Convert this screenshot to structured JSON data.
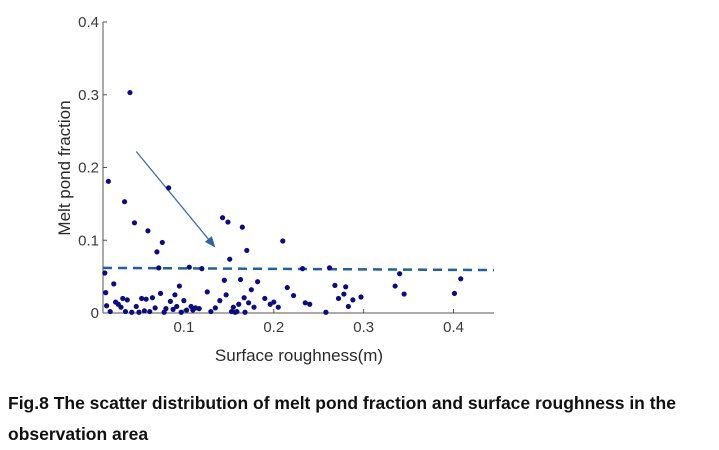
{
  "caption": "Fig.8 The scatter distribution of melt pond fraction and surface roughness in the observation area",
  "chart_data": {
    "type": "scatter",
    "xlabel": "Surface roughness(m)",
    "ylabel": "Melt pond fraction",
    "xlim": [
      0.01,
      0.445
    ],
    "ylim": [
      0,
      0.4
    ],
    "xticks": [
      0.1,
      0.2,
      0.3,
      0.4
    ],
    "xtick_labels": [
      "0.1",
      "0.2",
      "0.3",
      "0.4"
    ],
    "yticks": [
      0,
      0.1,
      0.2,
      0.3,
      0.4
    ],
    "ytick_labels": [
      "0",
      "0.1",
      "0.2",
      "0.3",
      "0.4"
    ],
    "grid": false,
    "legend": "none",
    "colors": {
      "points": "#0b0b8a",
      "trend_line": "#1f5fa8",
      "arrow": "#3a6fb0",
      "axis": "#555555"
    },
    "trend_line": {
      "style": "dashed",
      "x": [
        0.01,
        0.445
      ],
      "y": [
        0.062,
        0.059
      ]
    },
    "arrow": {
      "from": [
        0.047,
        0.222
      ],
      "to": [
        0.135,
        0.09
      ]
    },
    "points": [
      {
        "x": 0.012,
        "y": 0.055
      },
      {
        "x": 0.013,
        "y": 0.028
      },
      {
        "x": 0.014,
        "y": 0.01
      },
      {
        "x": 0.016,
        "y": 0.181
      },
      {
        "x": 0.018,
        "y": 0.002
      },
      {
        "x": 0.022,
        "y": 0.04
      },
      {
        "x": 0.024,
        "y": 0.015
      },
      {
        "x": 0.027,
        "y": 0.012
      },
      {
        "x": 0.03,
        "y": 0.008
      },
      {
        "x": 0.032,
        "y": 0.02
      },
      {
        "x": 0.034,
        "y": 0.153
      },
      {
        "x": 0.035,
        "y": 0.002
      },
      {
        "x": 0.037,
        "y": 0.018
      },
      {
        "x": 0.04,
        "y": 0.303
      },
      {
        "x": 0.042,
        "y": 0.001
      },
      {
        "x": 0.045,
        "y": 0.124
      },
      {
        "x": 0.047,
        "y": 0.009
      },
      {
        "x": 0.05,
        "y": 0.001
      },
      {
        "x": 0.053,
        "y": 0.02
      },
      {
        "x": 0.056,
        "y": 0.003
      },
      {
        "x": 0.058,
        "y": 0.019
      },
      {
        "x": 0.06,
        "y": 0.113
      },
      {
        "x": 0.062,
        "y": 0.002
      },
      {
        "x": 0.065,
        "y": 0.021
      },
      {
        "x": 0.068,
        "y": 0.007
      },
      {
        "x": 0.07,
        "y": 0.084
      },
      {
        "x": 0.072,
        "y": 0.062
      },
      {
        "x": 0.074,
        "y": 0.027
      },
      {
        "x": 0.076,
        "y": 0.097
      },
      {
        "x": 0.078,
        "y": 0.001
      },
      {
        "x": 0.08,
        "y": 0.006
      },
      {
        "x": 0.083,
        "y": 0.172
      },
      {
        "x": 0.085,
        "y": 0.016
      },
      {
        "x": 0.088,
        "y": 0.005
      },
      {
        "x": 0.09,
        "y": 0.025
      },
      {
        "x": 0.092,
        "y": 0.009
      },
      {
        "x": 0.095,
        "y": 0.037
      },
      {
        "x": 0.097,
        "y": 0.001
      },
      {
        "x": 0.1,
        "y": 0.017
      },
      {
        "x": 0.103,
        "y": 0.004
      },
      {
        "x": 0.106,
        "y": 0.063
      },
      {
        "x": 0.108,
        "y": 0.009
      },
      {
        "x": 0.11,
        "y": 0.004
      },
      {
        "x": 0.113,
        "y": 0.007
      },
      {
        "x": 0.117,
        "y": 0.006
      },
      {
        "x": 0.12,
        "y": 0.061
      },
      {
        "x": 0.126,
        "y": 0.029
      },
      {
        "x": 0.13,
        "y": 0.002
      },
      {
        "x": 0.135,
        "y": 0.007
      },
      {
        "x": 0.14,
        "y": 0.017
      },
      {
        "x": 0.143,
        "y": 0.131
      },
      {
        "x": 0.145,
        "y": 0.045
      },
      {
        "x": 0.147,
        "y": 0.025
      },
      {
        "x": 0.149,
        "y": 0.125
      },
      {
        "x": 0.151,
        "y": 0.074
      },
      {
        "x": 0.153,
        "y": 0.002
      },
      {
        "x": 0.155,
        "y": 0.008
      },
      {
        "x": 0.157,
        "y": 0.001
      },
      {
        "x": 0.159,
        "y": 0.002
      },
      {
        "x": 0.161,
        "y": 0.012
      },
      {
        "x": 0.163,
        "y": 0.046
      },
      {
        "x": 0.165,
        "y": 0.118
      },
      {
        "x": 0.167,
        "y": 0.021
      },
      {
        "x": 0.168,
        "y": 0.001
      },
      {
        "x": 0.17,
        "y": 0.086
      },
      {
        "x": 0.172,
        "y": 0.014
      },
      {
        "x": 0.175,
        "y": 0.032
      },
      {
        "x": 0.178,
        "y": 0.008
      },
      {
        "x": 0.182,
        "y": 0.043
      },
      {
        "x": 0.19,
        "y": 0.02
      },
      {
        "x": 0.196,
        "y": 0.012
      },
      {
        "x": 0.2,
        "y": 0.015
      },
      {
        "x": 0.205,
        "y": 0.008
      },
      {
        "x": 0.21,
        "y": 0.099
      },
      {
        "x": 0.215,
        "y": 0.035
      },
      {
        "x": 0.222,
        "y": 0.024
      },
      {
        "x": 0.232,
        "y": 0.061
      },
      {
        "x": 0.235,
        "y": 0.014
      },
      {
        "x": 0.24,
        "y": 0.012
      },
      {
        "x": 0.258,
        "y": 0.001
      },
      {
        "x": 0.262,
        "y": 0.062
      },
      {
        "x": 0.268,
        "y": 0.038
      },
      {
        "x": 0.272,
        "y": 0.02
      },
      {
        "x": 0.278,
        "y": 0.026
      },
      {
        "x": 0.28,
        "y": 0.036
      },
      {
        "x": 0.283,
        "y": 0.009
      },
      {
        "x": 0.288,
        "y": 0.018
      },
      {
        "x": 0.297,
        "y": 0.022
      },
      {
        "x": 0.335,
        "y": 0.037
      },
      {
        "x": 0.34,
        "y": 0.054
      },
      {
        "x": 0.345,
        "y": 0.026
      },
      {
        "x": 0.401,
        "y": 0.027
      },
      {
        "x": 0.408,
        "y": 0.047
      }
    ]
  }
}
